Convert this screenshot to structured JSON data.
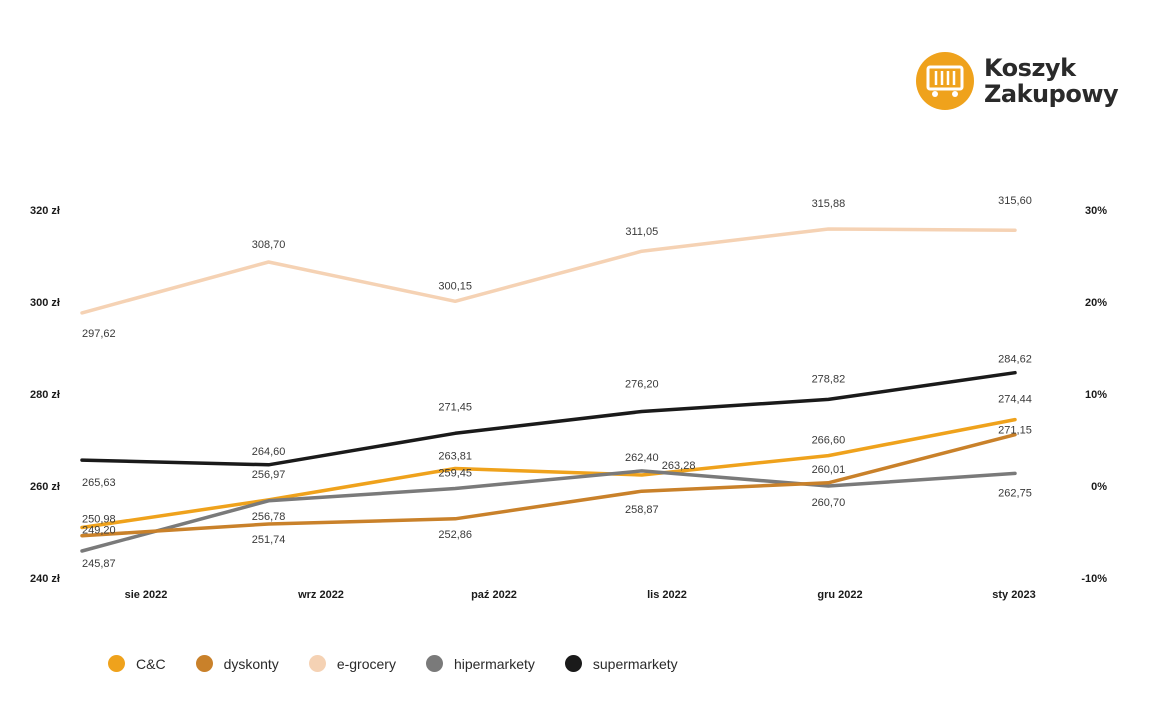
{
  "logo": {
    "line1": "Koszyk",
    "line2": "Zakupowy",
    "icon": "shopping-basket-icon",
    "color": "#EFA21C"
  },
  "chart_data": {
    "type": "line",
    "title": "",
    "categories": [
      "sie 2022",
      "wrz 2022",
      "paź 2022",
      "lis 2022",
      "gru 2022",
      "sty 2023"
    ],
    "y_left": {
      "ylim": [
        240,
        320
      ],
      "ticks": [
        240,
        260,
        280,
        300,
        320
      ],
      "tick_labels": [
        "240 zł",
        "260 zł",
        "280 zł",
        "300 zł",
        "320 zł"
      ]
    },
    "y_right": {
      "ylim": [
        -10,
        30
      ],
      "ticks": [
        -10,
        0,
        10,
        20,
        30
      ],
      "tick_labels": [
        "-10%",
        "0%",
        "10%",
        "20%",
        "30%"
      ]
    },
    "grid": false,
    "legend_position": "bottom-left",
    "series": [
      {
        "name": "e-grocery",
        "color": "#F5D2B4",
        "values": [
          297.62,
          308.7,
          300.15,
          311.05,
          315.88,
          315.6
        ],
        "labels": [
          "297,62",
          "308,70",
          "300,15",
          "311,05",
          "315,88",
          "315,60"
        ]
      },
      {
        "name": "supermarkety",
        "color": "#1A1A1A",
        "values": [
          265.63,
          264.6,
          271.45,
          276.2,
          278.82,
          284.62
        ],
        "labels": [
          "265,63",
          "264,60",
          "271,45",
          "276,20",
          "278,82",
          "284,62"
        ]
      },
      {
        "name": "C&C",
        "color": "#EFA21C",
        "values": [
          250.98,
          256.97,
          263.81,
          262.4,
          266.6,
          274.44
        ],
        "labels": [
          "250,98",
          "256,97",
          "263,81",
          "262,40",
          "266,60",
          "274,44"
        ]
      },
      {
        "name": "hipermarkety",
        "color": "#7A7A7A",
        "values": [
          245.87,
          256.78,
          259.45,
          263.28,
          260.01,
          262.75
        ],
        "labels": [
          "245,87",
          "256,78",
          "259,45",
          "263,28",
          "260,01",
          "262,75"
        ]
      },
      {
        "name": "dyskonty",
        "color": "#C9812A",
        "values": [
          249.2,
          251.74,
          252.86,
          258.87,
          260.7,
          271.15
        ],
        "labels": [
          "249,20",
          "251,74",
          "252,86",
          "258,87",
          "260,70",
          "271,15"
        ]
      }
    ]
  },
  "legend": [
    {
      "label": "C&C",
      "color": "#EFA21C"
    },
    {
      "label": "dyskonty",
      "color": "#C9812A"
    },
    {
      "label": "e-grocery",
      "color": "#F5D2B4"
    },
    {
      "label": "hipermarkety",
      "color": "#7A7A7A"
    },
    {
      "label": "supermarkety",
      "color": "#1A1A1A"
    }
  ]
}
